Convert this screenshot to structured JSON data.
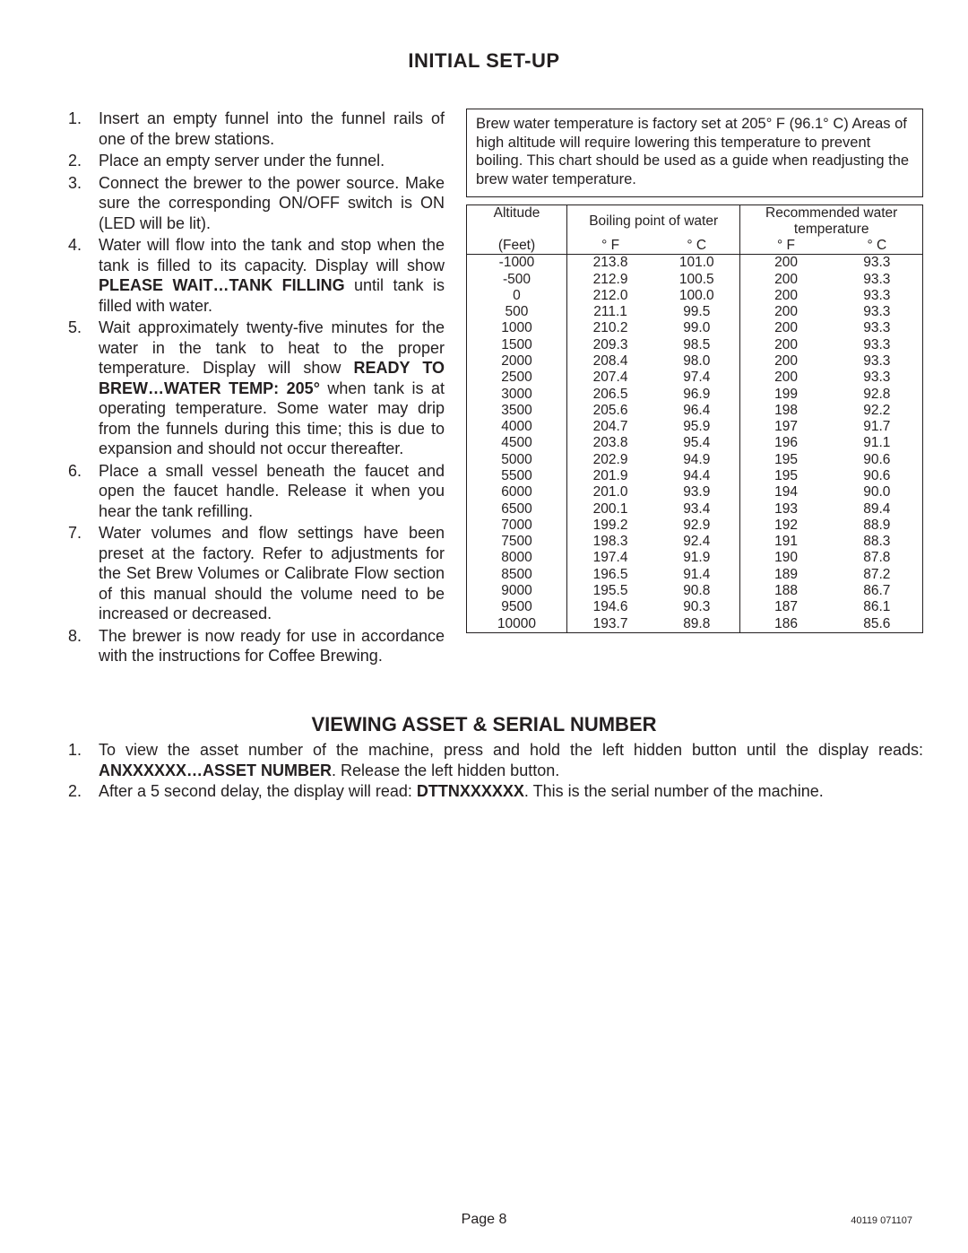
{
  "title": "INITIAL SET-UP",
  "setup_steps": [
    {
      "pre": "Insert an empty funnel into the funnel rails of one of the brew stations.",
      "bold": "",
      "post": ""
    },
    {
      "pre": "Place an empty server under the funnel.",
      "bold": "",
      "post": ""
    },
    {
      "pre": "Connect the brewer to the power source. Make sure the corresponding ON/OFF switch is ON (LED will be lit).",
      "bold": "",
      "post": ""
    },
    {
      "pre": "Water will flow into the tank and stop when the tank is filled to its capacity. Display will show  ",
      "bold": "PLEASE WAIT…TANK FILLING",
      "post": " until tank is filled with water."
    },
    {
      "pre": "Wait approximately twenty-five minutes for the water in the tank to heat to the proper temperature. Display will show  ",
      "bold": "READY TO BREW…WATER TEMP: 205°",
      "post": " when tank is at operating temperature. Some water may drip from the funnels during this time; this is due to expansion and should not occur thereafter."
    },
    {
      "pre": "Place a small vessel beneath the faucet and open the faucet handle. Release it when you hear the tank refilling.",
      "bold": "",
      "post": ""
    },
    {
      "pre": "Water volumes and flow settings have been preset at the factory. Refer to adjustments for the Set Brew Volumes or Calibrate Flow section of this manual should the volume need to be increased or decreased.",
      "bold": "",
      "post": ""
    },
    {
      "pre": "The brewer is now ready for use in accordance with the instructions for Coffee Brewing.",
      "bold": "",
      "post": ""
    }
  ],
  "note": "Brew water temperature is factory set at 205° F (96.1° C) Areas of high altitude will require lowering this temperature to prevent boiling.  This chart should be used as a guide when readjusting the brew water temperature.",
  "table": {
    "head": {
      "alt_label": "Altitude",
      "alt_unit": "(Feet)",
      "bp_label": "Boiling point of water",
      "rec_label": "Recommended water temperature",
      "degF": "° F",
      "degC": "° C"
    },
    "rows": [
      [
        "-1000",
        "213.8",
        "101.0",
        "200",
        "93.3"
      ],
      [
        "-500",
        "212.9",
        "100.5",
        "200",
        "93.3"
      ],
      [
        "0",
        "212.0",
        "100.0",
        "200",
        "93.3"
      ],
      [
        "500",
        "211.1",
        "99.5",
        "200",
        "93.3"
      ],
      [
        "1000",
        "210.2",
        "99.0",
        "200",
        "93.3"
      ],
      [
        "1500",
        "209.3",
        "98.5",
        "200",
        "93.3"
      ],
      [
        "2000",
        "208.4",
        "98.0",
        "200",
        "93.3"
      ],
      [
        "2500",
        "207.4",
        "97.4",
        "200",
        "93.3"
      ],
      [
        "3000",
        "206.5",
        "96.9",
        "199",
        "92.8"
      ],
      [
        "3500",
        "205.6",
        "96.4",
        "198",
        "92.2"
      ],
      [
        "4000",
        "204.7",
        "95.9",
        "197",
        "91.7"
      ],
      [
        "4500",
        "203.8",
        "95.4",
        "196",
        "91.1"
      ],
      [
        "5000",
        "202.9",
        "94.9",
        "195",
        "90.6"
      ],
      [
        "5500",
        "201.9",
        "94.4",
        "195",
        "90.6"
      ],
      [
        "6000",
        "201.0",
        "93.9",
        "194",
        "90.0"
      ],
      [
        "6500",
        "200.1",
        "93.4",
        "193",
        "89.4"
      ],
      [
        "7000",
        "199.2",
        "92.9",
        "192",
        "88.9"
      ],
      [
        "7500",
        "198.3",
        "92.4",
        "191",
        "88.3"
      ],
      [
        "8000",
        "197.4",
        "91.9",
        "190",
        "87.8"
      ],
      [
        "8500",
        "196.5",
        "91.4",
        "189",
        "87.2"
      ],
      [
        "9000",
        "195.5",
        "90.8",
        "188",
        "86.7"
      ],
      [
        "9500",
        "194.6",
        "90.3",
        "187",
        "86.1"
      ],
      [
        "10000",
        "193.7",
        "89.8",
        "186",
        "85.6"
      ]
    ]
  },
  "section2_title": "VIEWING ASSET & SERIAL NUMBER",
  "asset_steps": [
    {
      "pre": "To view the asset number of the machine, press and hold the left hidden button until the display reads: ",
      "bold": "ANXXXXXX…ASSET NUMBER",
      "post": ". Release the left hidden button."
    },
    {
      "pre": "After a 5 second delay, the display will read: ",
      "bold": "DTTNXXXXXX",
      "post": ". This is the serial number of the machine."
    }
  ],
  "footer_page": "Page 8",
  "footer_num": "40119 071107"
}
